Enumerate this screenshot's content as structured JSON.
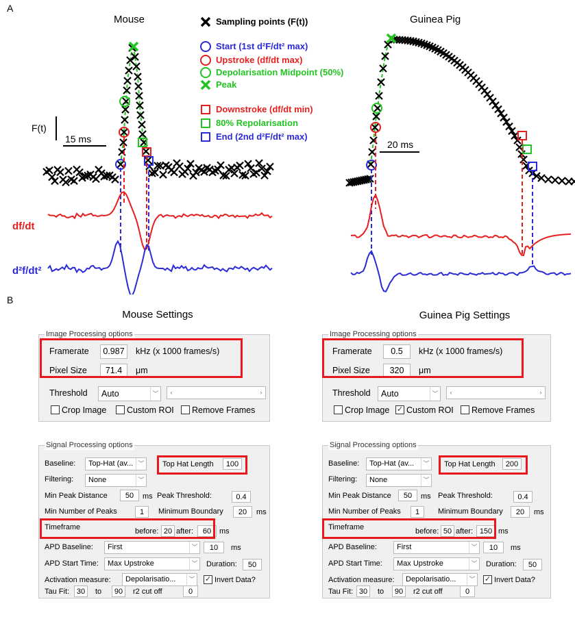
{
  "panel_labels": {
    "a": "A",
    "b": "B"
  },
  "figure": {
    "mouse_title": "Mouse",
    "guinea_title": "Guinea Pig",
    "y_label": "F(t)",
    "mouse_scale": "15 ms",
    "guinea_scale": "20 ms",
    "dfdt_label": "df/dt",
    "d2_label": "d²f/dt²",
    "legend": [
      {
        "marker": "x-icon",
        "color": "#000000",
        "text": "Sampling points (F(t))"
      },
      {
        "marker": "circle-icon",
        "color": "#2a2ad8",
        "text": "Start (1st d²F/dt² max)"
      },
      {
        "marker": "circle-icon",
        "color": "#e61e1e",
        "text": "Upstroke (df/dt  max)"
      },
      {
        "marker": "circle-icon",
        "color": "#22c422",
        "text": "Depolarisation Midpoint (50%)"
      },
      {
        "marker": "x-icon",
        "color": "#22c422",
        "text": "Peak"
      },
      {
        "marker": "square-icon",
        "color": "#e61e1e",
        "text": "Downstroke (df/dt min)"
      },
      {
        "marker": "square-icon",
        "color": "#22c422",
        "text": "80% Repolarisation"
      },
      {
        "marker": "square-icon",
        "color": "#2a2ad8",
        "text": "End (2nd d²F/dt² max)"
      }
    ],
    "colors": {
      "red": "#e61e1e",
      "blue": "#2a2ad8",
      "green": "#22c422",
      "highlight": "#e8181e"
    }
  },
  "mouse": {
    "title": "Mouse Settings",
    "image": {
      "group": "Image Processing options",
      "framerate_label": "Framerate",
      "framerate": "0.987",
      "framerate_unit": "kHz (x 1000 frames/s)",
      "pixel_label": "Pixel Size",
      "pixel": "71.4",
      "pixel_unit": "μm",
      "threshold_label": "Threshold",
      "threshold": "Auto",
      "crop": "Crop Image",
      "crop_checked": false,
      "roi": "Custom ROI",
      "roi_checked": false,
      "remove": "Remove Frames",
      "remove_checked": false
    },
    "signal": {
      "group": "Signal Processing options",
      "baseline_label": "Baseline:",
      "baseline": "Top-Hat (av...",
      "tophat_label": "Top Hat Length",
      "tophat": "100",
      "filtering_label": "Filtering:",
      "filtering": "None",
      "minpeak_label": "Min Peak Distance",
      "minpeak": "50",
      "ms": "ms",
      "peakthr_label": "Peak Threshold:",
      "peakthr": "0.4",
      "minnum_label": "Min Number of Peaks",
      "minnum": "1",
      "minbound_label": "Minimum Boundary",
      "minbound": "20",
      "timeframe_label": "Timeframe",
      "before_label": "before:",
      "before": "20",
      "after_label": "after:",
      "after": "60",
      "apdbase_label": "APD Baseline:",
      "apdbase": "First",
      "apdbase_val": "10",
      "apdstart_label": "APD Start Time:",
      "apdstart": "Max Upstroke",
      "duration_label": "Duration:",
      "duration": "50",
      "activation_label": "Activation measure:",
      "activation": "Depolarisatio...",
      "invert": "Invert Data?",
      "invert_checked": true,
      "tau_label": "Tau Fit:",
      "tau_from": "30",
      "tau_to_label": "to",
      "tau_to": "90",
      "r2_label": "r2 cut off",
      "r2": "0"
    }
  },
  "guinea": {
    "title": "Guinea Pig Settings",
    "image": {
      "group": "Image Processing options",
      "framerate_label": "Framerate",
      "framerate": "0.5",
      "framerate_unit": "kHz (x 1000 frames/s)",
      "pixel_label": "Pixel Size",
      "pixel": "320",
      "pixel_unit": "μm",
      "threshold_label": "Threshold",
      "threshold": "Auto",
      "crop": "Crop Image",
      "crop_checked": false,
      "roi": "Custom ROI",
      "roi_checked": true,
      "remove": "Remove Frames",
      "remove_checked": false
    },
    "signal": {
      "group": "Signal Processing options",
      "baseline_label": "Baseline:",
      "baseline": "Top-Hat (av...",
      "tophat_label": "Top Hat Length",
      "tophat": "200",
      "filtering_label": "Filtering:",
      "filtering": "None",
      "minpeak_label": "Min Peak Distance",
      "minpeak": "50",
      "ms": "ms",
      "peakthr_label": "Peak Threshold:",
      "peakthr": "0.4",
      "minnum_label": "Min Number of Peaks",
      "minnum": "1",
      "minbound_label": "Minimum Boundary",
      "minbound": "20",
      "timeframe_label": "Timeframe",
      "before_label": "before:",
      "before": "50",
      "after_label": "after:",
      "after": "150",
      "apdbase_label": "APD Baseline:",
      "apdbase": "First",
      "apdbase_val": "10",
      "apdstart_label": "APD Start Time:",
      "apdstart": "Max Upstroke",
      "duration_label": "Duration:",
      "duration": "50",
      "activation_label": "Activation measure:",
      "activation": "Depolarisatio...",
      "invert": "Invert Data?",
      "invert_checked": true,
      "tau_label": "Tau Fit:",
      "tau_from": "30",
      "tau_to_label": "to",
      "tau_to": "90",
      "r2_label": "r2 cut off",
      "r2": "0"
    }
  }
}
